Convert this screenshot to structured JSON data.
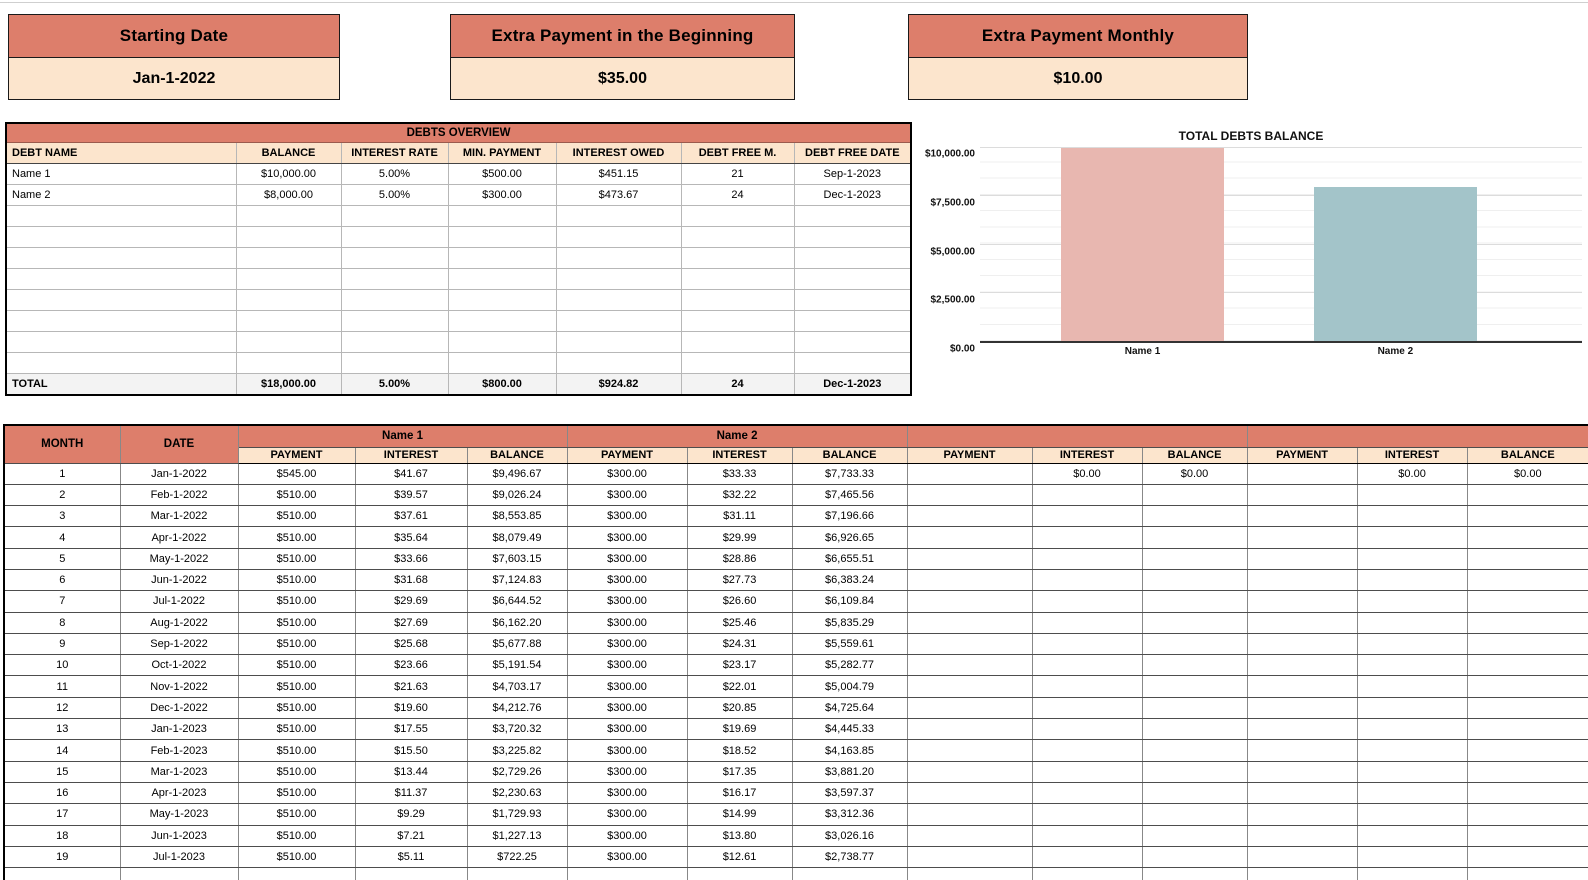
{
  "theme": {
    "header_bg": "#dd7e6b",
    "subheader_bg": "#fce5cd",
    "total_row_bg": "#f3f3f3"
  },
  "cards": [
    {
      "label": "Starting Date",
      "value": "Jan-1-2022"
    },
    {
      "label": "Extra Payment in the Beginning",
      "value": "$35.00"
    },
    {
      "label": "Extra Payment Monthly",
      "value": "$10.00"
    }
  ],
  "debts_overview": {
    "title": "DEBTS OVERVIEW",
    "columns": [
      "DEBT NAME",
      "BALANCE",
      "INTEREST RATE",
      "MIN. PAYMENT",
      "INTEREST OWED",
      "DEBT FREE M.",
      "DEBT FREE DATE"
    ],
    "rows": [
      [
        "Name 1",
        "$10,000.00",
        "5.00%",
        "$500.00",
        "$451.15",
        "21",
        "Sep-1-2023"
      ],
      [
        "Name 2",
        "$8,000.00",
        "5.00%",
        "$300.00",
        "$473.67",
        "24",
        "Dec-1-2023"
      ],
      [
        "",
        "",
        "",
        "",
        "",
        "",
        ""
      ],
      [
        "",
        "",
        "",
        "",
        "",
        "",
        ""
      ],
      [
        "",
        "",
        "",
        "",
        "",
        "",
        ""
      ],
      [
        "",
        "",
        "",
        "",
        "",
        "",
        ""
      ],
      [
        "",
        "",
        "",
        "",
        "",
        "",
        ""
      ],
      [
        "",
        "",
        "",
        "",
        "",
        "",
        ""
      ],
      [
        "",
        "",
        "",
        "",
        "",
        "",
        ""
      ],
      [
        "",
        "",
        "",
        "",
        "",
        "",
        ""
      ]
    ],
    "total_row": [
      "TOTAL",
      "$18,000.00",
      "5.00%",
      "$800.00",
      "$924.82",
      "24",
      "Dec-1-2023"
    ]
  },
  "chart_data": {
    "type": "bar",
    "title": "TOTAL DEBTS BALANCE",
    "categories": [
      "Name 1",
      "Name 2"
    ],
    "values": [
      10000,
      8000
    ],
    "bar_colors": [
      "#e8b7b0",
      "#a3c4c9"
    ],
    "ylim": [
      0,
      10000
    ],
    "yticks": [
      0,
      2500,
      5000,
      7500,
      10000
    ],
    "ytick_labels": [
      "$0.00",
      "$2,500.00",
      "$5,000.00",
      "$7,500.00",
      "$10,000.00"
    ],
    "grid": true,
    "legend": "none"
  },
  "schedule": {
    "month_header": "MONTH",
    "date_header": "DATE",
    "groups": [
      {
        "name": "Name 1"
      },
      {
        "name": "Name 2"
      },
      {
        "name": ""
      },
      {
        "name": ""
      }
    ],
    "sub_columns": [
      "PAYMENT",
      "INTEREST",
      "BALANCE"
    ],
    "rows": [
      [
        "1",
        "Jan-1-2022",
        "$545.00",
        "$41.67",
        "$9,496.67",
        "$300.00",
        "$33.33",
        "$7,733.33",
        "",
        "$0.00",
        "$0.00",
        "",
        "$0.00",
        "$0.00"
      ],
      [
        "2",
        "Feb-1-2022",
        "$510.00",
        "$39.57",
        "$9,026.24",
        "$300.00",
        "$32.22",
        "$7,465.56",
        "",
        "",
        "",
        "",
        "",
        ""
      ],
      [
        "3",
        "Mar-1-2022",
        "$510.00",
        "$37.61",
        "$8,553.85",
        "$300.00",
        "$31.11",
        "$7,196.66",
        "",
        "",
        "",
        "",
        "",
        ""
      ],
      [
        "4",
        "Apr-1-2022",
        "$510.00",
        "$35.64",
        "$8,079.49",
        "$300.00",
        "$29.99",
        "$6,926.65",
        "",
        "",
        "",
        "",
        "",
        ""
      ],
      [
        "5",
        "May-1-2022",
        "$510.00",
        "$33.66",
        "$7,603.15",
        "$300.00",
        "$28.86",
        "$6,655.51",
        "",
        "",
        "",
        "",
        "",
        ""
      ],
      [
        "6",
        "Jun-1-2022",
        "$510.00",
        "$31.68",
        "$7,124.83",
        "$300.00",
        "$27.73",
        "$6,383.24",
        "",
        "",
        "",
        "",
        "",
        ""
      ],
      [
        "7",
        "Jul-1-2022",
        "$510.00",
        "$29.69",
        "$6,644.52",
        "$300.00",
        "$26.60",
        "$6,109.84",
        "",
        "",
        "",
        "",
        "",
        ""
      ],
      [
        "8",
        "Aug-1-2022",
        "$510.00",
        "$27.69",
        "$6,162.20",
        "$300.00",
        "$25.46",
        "$5,835.29",
        "",
        "",
        "",
        "",
        "",
        ""
      ],
      [
        "9",
        "Sep-1-2022",
        "$510.00",
        "$25.68",
        "$5,677.88",
        "$300.00",
        "$24.31",
        "$5,559.61",
        "",
        "",
        "",
        "",
        "",
        ""
      ],
      [
        "10",
        "Oct-1-2022",
        "$510.00",
        "$23.66",
        "$5,191.54",
        "$300.00",
        "$23.17",
        "$5,282.77",
        "",
        "",
        "",
        "",
        "",
        ""
      ],
      [
        "11",
        "Nov-1-2022",
        "$510.00",
        "$21.63",
        "$4,703.17",
        "$300.00",
        "$22.01",
        "$5,004.79",
        "",
        "",
        "",
        "",
        "",
        ""
      ],
      [
        "12",
        "Dec-1-2022",
        "$510.00",
        "$19.60",
        "$4,212.76",
        "$300.00",
        "$20.85",
        "$4,725.64",
        "",
        "",
        "",
        "",
        "",
        ""
      ],
      [
        "13",
        "Jan-1-2023",
        "$510.00",
        "$17.55",
        "$3,720.32",
        "$300.00",
        "$19.69",
        "$4,445.33",
        "",
        "",
        "",
        "",
        "",
        ""
      ],
      [
        "14",
        "Feb-1-2023",
        "$510.00",
        "$15.50",
        "$3,225.82",
        "$300.00",
        "$18.52",
        "$4,163.85",
        "",
        "",
        "",
        "",
        "",
        ""
      ],
      [
        "15",
        "Mar-1-2023",
        "$510.00",
        "$13.44",
        "$2,729.26",
        "$300.00",
        "$17.35",
        "$3,881.20",
        "",
        "",
        "",
        "",
        "",
        ""
      ],
      [
        "16",
        "Apr-1-2023",
        "$510.00",
        "$11.37",
        "$2,230.63",
        "$300.00",
        "$16.17",
        "$3,597.37",
        "",
        "",
        "",
        "",
        "",
        ""
      ],
      [
        "17",
        "May-1-2023",
        "$510.00",
        "$9.29",
        "$1,729.93",
        "$300.00",
        "$14.99",
        "$3,312.36",
        "",
        "",
        "",
        "",
        "",
        ""
      ],
      [
        "18",
        "Jun-1-2023",
        "$510.00",
        "$7.21",
        "$1,227.13",
        "$300.00",
        "$13.80",
        "$3,026.16",
        "",
        "",
        "",
        "",
        "",
        ""
      ],
      [
        "19",
        "Jul-1-2023",
        "$510.00",
        "$5.11",
        "$722.25",
        "$300.00",
        "$12.61",
        "$2,738.77",
        "",
        "",
        "",
        "",
        "",
        ""
      ]
    ]
  }
}
